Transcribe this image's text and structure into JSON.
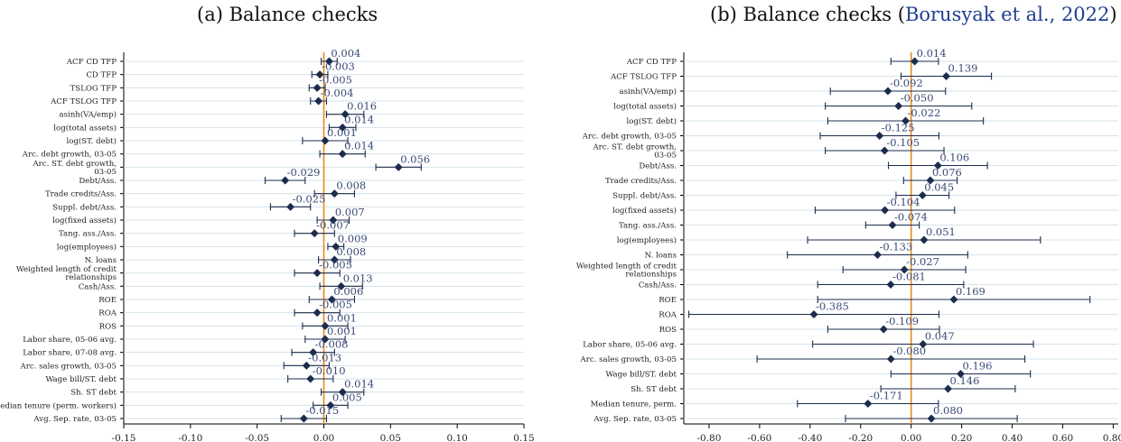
{
  "chart_data": [
    {
      "type": "scatter",
      "title": "(a) Balance checks",
      "xlim": [
        -0.15,
        0.15
      ],
      "xticks": [
        "-0.15",
        "-0.10",
        "-0.05",
        "0.00",
        "0.05",
        "0.10",
        "0.15"
      ],
      "xtick_values": [
        -0.15,
        -0.1,
        -0.05,
        0.0,
        0.05,
        0.1,
        0.15
      ],
      "reference_line": 0,
      "grid": "horizontal",
      "series": [
        {
          "values": [
            {
              "label": "ACF CD TFP",
              "est": 0.004,
              "lo": -0.002,
              "hi": 0.01,
              "text": "0.004"
            },
            {
              "label": "CD TFP",
              "est": -0.003,
              "lo": -0.009,
              "hi": 0.003,
              "text": "-0.003"
            },
            {
              "label": "TSLOG TFP",
              "est": -0.005,
              "lo": -0.011,
              "hi": 0.001,
              "text": "-0.005"
            },
            {
              "label": "ACF TSLOG TFP",
              "est": -0.004,
              "lo": -0.01,
              "hi": 0.002,
              "text": "-0.004"
            },
            {
              "label": "asinh(VA/emp)",
              "est": 0.016,
              "lo": 0.002,
              "hi": 0.03,
              "text": "0.016"
            },
            {
              "label": "log(total assets)",
              "est": 0.014,
              "lo": 0.004,
              "hi": 0.024,
              "text": "0.014"
            },
            {
              "label": "log(ST. debt)",
              "est": 0.001,
              "lo": -0.016,
              "hi": 0.018,
              "text": "0.001"
            },
            {
              "label": "Arc. debt growth, 03-05",
              "est": 0.014,
              "lo": -0.003,
              "hi": 0.031,
              "text": "0.014"
            },
            {
              "label": "Arc. ST. debt growth, 03-05",
              "est": 0.056,
              "lo": 0.039,
              "hi": 0.073,
              "text": "0.056"
            },
            {
              "label": "Debt/Ass.",
              "est": -0.029,
              "lo": -0.044,
              "hi": -0.014,
              "text": "-0.029"
            },
            {
              "label": "Trade credits/Ass.",
              "est": 0.008,
              "lo": -0.007,
              "hi": 0.023,
              "text": "0.008"
            },
            {
              "label": "Suppl. debt/Ass.",
              "est": -0.025,
              "lo": -0.04,
              "hi": -0.01,
              "text": "-0.025"
            },
            {
              "label": "log(fixed assets)",
              "est": 0.007,
              "lo": -0.005,
              "hi": 0.019,
              "text": "0.007"
            },
            {
              "label": "Tang. ass./Ass.",
              "est": -0.007,
              "lo": -0.022,
              "hi": 0.008,
              "text": "-0.007"
            },
            {
              "label": "log(employees)",
              "est": 0.009,
              "lo": 0.003,
              "hi": 0.015,
              "text": "0.009"
            },
            {
              "label": "N. loans",
              "est": 0.008,
              "lo": -0.004,
              "hi": 0.02,
              "text": "0.008"
            },
            {
              "label": "Weighted length of credit relationships",
              "est": -0.005,
              "lo": -0.022,
              "hi": 0.012,
              "text": "-0.005"
            },
            {
              "label": "Cash/Ass.",
              "est": 0.013,
              "lo": -0.003,
              "hi": 0.029,
              "text": "0.013"
            },
            {
              "label": "ROE",
              "est": 0.006,
              "lo": -0.011,
              "hi": 0.023,
              "text": "0.006"
            },
            {
              "label": "ROA",
              "est": -0.005,
              "lo": -0.022,
              "hi": 0.012,
              "text": "-0.005"
            },
            {
              "label": "ROS",
              "est": 0.001,
              "lo": -0.016,
              "hi": 0.018,
              "text": "0.001"
            },
            {
              "label": "Labor share, 05-06 avg.",
              "est": 0.001,
              "lo": -0.014,
              "hi": 0.016,
              "text": "0.001"
            },
            {
              "label": "Labor share, 07-08 avg.",
              "est": -0.008,
              "lo": -0.024,
              "hi": 0.008,
              "text": "-0.008"
            },
            {
              "label": "Arc. sales growth, 03-05",
              "est": -0.013,
              "lo": -0.03,
              "hi": 0.004,
              "text": "-0.013"
            },
            {
              "label": "Wage bill/ST. debt",
              "est": -0.01,
              "lo": -0.027,
              "hi": 0.007,
              "text": "-0.010"
            },
            {
              "label": "Sh. ST debt",
              "est": 0.014,
              "lo": -0.002,
              "hi": 0.03,
              "text": "0.014"
            },
            {
              "label": "Median tenure (perm. workers)",
              "est": 0.005,
              "lo": -0.008,
              "hi": 0.018,
              "text": "0.005"
            },
            {
              "label": "Avg. Sep. rate, 03-05",
              "est": -0.015,
              "lo": -0.032,
              "hi": 0.002,
              "text": "-0.015"
            }
          ]
        }
      ]
    },
    {
      "type": "scatter",
      "title": "(b) Balance checks (",
      "citation": "Borusyak et al., 2022",
      "title_close": ")",
      "xlim": [
        -0.9,
        0.82
      ],
      "xticks": [
        "-0.80",
        "-0.60",
        "-0.40",
        "-0.20",
        "0.00",
        "0.20",
        "0.40",
        "0.60",
        "0.80"
      ],
      "xtick_values": [
        -0.8,
        -0.6,
        -0.4,
        -0.2,
        0.0,
        0.2,
        0.4,
        0.6,
        0.8
      ],
      "reference_line": 0,
      "grid": "horizontal",
      "series": [
        {
          "values": [
            {
              "label": "ACF CD TFP",
              "est": 0.014,
              "lo": -0.08,
              "hi": 0.108,
              "text": "0.014"
            },
            {
              "label": "ACF TSLOG TFP",
              "est": 0.139,
              "lo": -0.04,
              "hi": 0.318,
              "text": "0.139"
            },
            {
              "label": "asinh(VA/emp)",
              "est": -0.092,
              "lo": -0.32,
              "hi": 0.136,
              "text": "-0.092"
            },
            {
              "label": "log(total assets)",
              "est": -0.05,
              "lo": -0.34,
              "hi": 0.24,
              "text": "-0.050"
            },
            {
              "label": "log(ST. debt)",
              "est": -0.022,
              "lo": -0.33,
              "hi": 0.286,
              "text": "-0.022"
            },
            {
              "label": "Arc. debt growth, 03-05",
              "est": -0.125,
              "lo": -0.36,
              "hi": 0.11,
              "text": "-0.125"
            },
            {
              "label": "Arc. ST. debt growth, 03-05",
              "est": -0.105,
              "lo": -0.34,
              "hi": 0.13,
              "text": "-0.105"
            },
            {
              "label": "Debt/Ass.",
              "est": 0.106,
              "lo": -0.09,
              "hi": 0.302,
              "text": "0.106"
            },
            {
              "label": "Trade credits/Ass.",
              "est": 0.076,
              "lo": -0.03,
              "hi": 0.182,
              "text": "0.076"
            },
            {
              "label": "Suppl. debt/Ass.",
              "est": 0.045,
              "lo": -0.06,
              "hi": 0.15,
              "text": "0.045"
            },
            {
              "label": "log(fixed assets)",
              "est": -0.104,
              "lo": -0.38,
              "hi": 0.172,
              "text": "-0.104"
            },
            {
              "label": "Tang. ass./Ass.",
              "est": -0.074,
              "lo": -0.18,
              "hi": 0.032,
              "text": "-0.074"
            },
            {
              "label": "log(employees)",
              "est": 0.051,
              "lo": -0.41,
              "hi": 0.512,
              "text": "0.051"
            },
            {
              "label": "N. loans",
              "est": -0.133,
              "lo": -0.49,
              "hi": 0.224,
              "text": "-0.133"
            },
            {
              "label": "Weighted length of credit relationships",
              "est": -0.027,
              "lo": -0.27,
              "hi": 0.216,
              "text": "-0.027"
            },
            {
              "label": "Cash/Ass.",
              "est": -0.081,
              "lo": -0.37,
              "hi": 0.208,
              "text": "-0.081"
            },
            {
              "label": "ROE",
              "est": 0.169,
              "lo": -0.37,
              "hi": 0.708,
              "text": "0.169"
            },
            {
              "label": "ROA",
              "est": -0.385,
              "lo": -0.88,
              "hi": 0.11,
              "text": "-0.385"
            },
            {
              "label": "ROS",
              "est": -0.109,
              "lo": -0.33,
              "hi": 0.112,
              "text": "-0.109"
            },
            {
              "label": "Labor share, 05-06 avg.",
              "est": 0.047,
              "lo": -0.39,
              "hi": 0.484,
              "text": "0.047"
            },
            {
              "label": "Arc. sales growth, 03-05",
              "est": -0.08,
              "lo": -0.61,
              "hi": 0.45,
              "text": "-0.080"
            },
            {
              "label": "Wage bill/ST. debt",
              "est": 0.196,
              "lo": -0.08,
              "hi": 0.472,
              "text": "0.196"
            },
            {
              "label": "Sh. ST debt",
              "est": 0.146,
              "lo": -0.12,
              "hi": 0.412,
              "text": "0.146"
            },
            {
              "label": "Median tenure, perm.",
              "est": -0.171,
              "lo": -0.45,
              "hi": 0.108,
              "text": "-0.171"
            },
            {
              "label": "Avg. Sep. rate, 03-05",
              "est": 0.08,
              "lo": -0.26,
              "hi": 0.42,
              "text": "0.080"
            }
          ]
        }
      ]
    }
  ],
  "colors": {
    "marker": "#1c2c4c",
    "ci": "#1c2c4c",
    "zero_line": "#e8891a",
    "grid": "#d5e3ea",
    "value_label": "#3a4a78",
    "citation": "#1f3f8f"
  }
}
